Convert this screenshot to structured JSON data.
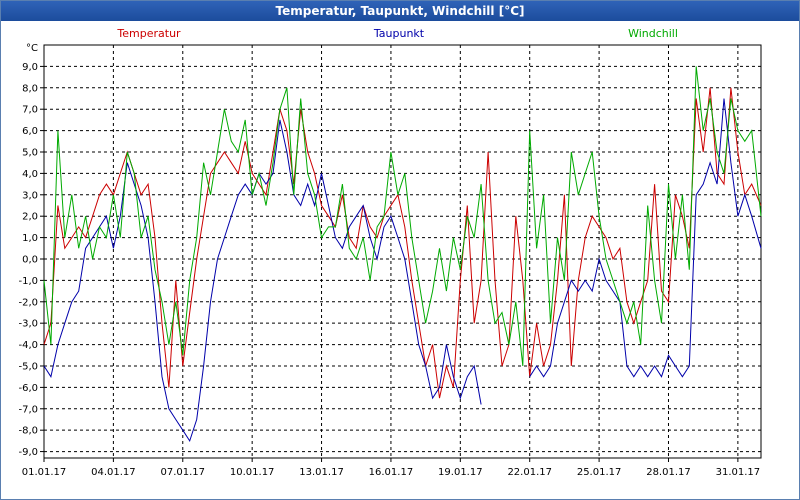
{
  "chart_data": {
    "type": "line",
    "title": "Temperatur, Taupunkt, Windchill [°C]",
    "ylabel": "°C",
    "xlabel": "",
    "ylim": [
      -9.3,
      10.0
    ],
    "xlim": [
      1,
      32
    ],
    "grid": true,
    "legend_placement": "top",
    "y_ticks": [
      "9,0",
      "8,0",
      "7,0",
      "6,0",
      "5,0",
      "4,0",
      "3,0",
      "2,0",
      "1,0",
      "0,0",
      "-1,0",
      "-2,0",
      "-3,0",
      "-4,0",
      "-5,0",
      "-6,0",
      "-7,0",
      "-8,0",
      "-9,0"
    ],
    "y_tick_values": [
      9,
      8,
      7,
      6,
      5,
      4,
      3,
      2,
      1,
      0,
      -1,
      -2,
      -3,
      -4,
      -5,
      -6,
      -7,
      -8,
      -9
    ],
    "x_ticks": [
      "01.01.17",
      "04.01.17",
      "07.01.17",
      "10.01.17",
      "13.01.17",
      "16.01.17",
      "19.01.17",
      "22.01.17",
      "25.01.17",
      "28.01.17",
      "31.01.17"
    ],
    "x_tick_values": [
      1,
      4,
      7,
      10,
      13,
      16,
      19,
      22,
      25,
      28,
      31
    ],
    "series": [
      {
        "name": "Temperatur",
        "color": "#cc0000",
        "x": [
          1,
          1.3,
          1.6,
          1.9,
          2.2,
          2.5,
          2.8,
          3.1,
          3.4,
          3.7,
          4.0,
          4.3,
          4.6,
          4.9,
          5.2,
          5.5,
          5.8,
          6.1,
          6.4,
          6.7,
          7.0,
          7.3,
          7.6,
          7.9,
          8.2,
          8.5,
          8.8,
          9.1,
          9.4,
          9.7,
          10.0,
          10.3,
          10.6,
          10.9,
          11.2,
          11.5,
          11.8,
          12.1,
          12.4,
          12.7,
          13.0,
          13.3,
          13.6,
          13.9,
          14.2,
          14.5,
          14.8,
          15.1,
          15.4,
          15.7,
          16.0,
          16.3,
          16.6,
          16.9,
          17.2,
          17.5,
          17.8,
          18.1,
          18.4,
          18.7,
          19.0,
          19.3,
          19.6,
          19.9,
          20.2,
          20.5,
          20.8,
          21.1,
          21.4,
          21.7,
          22.0,
          22.3,
          22.6,
          22.9,
          23.2,
          23.5,
          23.8,
          24.1,
          24.4,
          24.7,
          25.0,
          25.3,
          25.6,
          25.9,
          26.2,
          26.5,
          26.8,
          27.1,
          27.4,
          27.7,
          28.0,
          28.3,
          28.6,
          28.9,
          29.2,
          29.5,
          29.8,
          30.1,
          30.4,
          30.7,
          31.0,
          31.3,
          31.6,
          32.0
        ],
        "y": [
          -4.0,
          -3.0,
          2.5,
          0.5,
          1.0,
          1.5,
          1.0,
          2.0,
          3.0,
          3.5,
          3.0,
          4.0,
          5.0,
          4.0,
          3.0,
          3.5,
          1.0,
          -3.0,
          -6.0,
          -1.0,
          -5.0,
          -2.5,
          0.0,
          2.0,
          4.0,
          4.5,
          5.0,
          4.5,
          4.0,
          5.5,
          4.0,
          3.5,
          3.0,
          5.0,
          7.0,
          6.0,
          3.5,
          7.0,
          5.0,
          4.0,
          2.5,
          2.0,
          1.5,
          3.0,
          1.0,
          0.5,
          2.5,
          1.5,
          1.0,
          2.0,
          2.5,
          3.0,
          1.5,
          -1.0,
          -3.0,
          -5.0,
          -4.0,
          -6.5,
          -5.0,
          -6.0,
          -1.0,
          2.5,
          -3.0,
          -1.0,
          5.0,
          -1.0,
          -5.0,
          -4.0,
          2.0,
          -1.0,
          -5.5,
          -3.0,
          -5.0,
          -4.0,
          -1.0,
          3.0,
          -5.0,
          -1.0,
          1.0,
          2.0,
          1.5,
          1.0,
          0.0,
          0.5,
          -2.0,
          -3.0,
          -2.0,
          -1.0,
          3.5,
          -1.5,
          -2.0,
          3.0,
          2.0,
          0.5,
          7.5,
          5.0,
          8.0,
          4.0,
          3.5,
          8.0,
          5.0,
          3.0,
          3.5,
          2.5
        ]
      },
      {
        "name": "Taupunkt",
        "color": "#0000aa",
        "x": [
          1,
          1.3,
          1.6,
          1.9,
          2.2,
          2.5,
          2.8,
          3.1,
          3.4,
          3.7,
          4.0,
          4.3,
          4.6,
          4.9,
          5.2,
          5.5,
          5.8,
          6.1,
          6.4,
          6.7,
          7.0,
          7.3,
          7.6,
          7.9,
          8.2,
          8.5,
          8.8,
          9.1,
          9.4,
          9.7,
          10.0,
          10.3,
          10.6,
          10.9,
          11.2,
          11.5,
          11.8,
          12.1,
          12.4,
          12.7,
          13.0,
          13.3,
          13.6,
          13.9,
          14.2,
          14.5,
          14.8,
          15.1,
          15.4,
          15.7,
          16.0,
          16.3,
          16.6,
          16.9,
          17.2,
          17.5,
          17.8,
          18.1,
          18.4,
          18.7,
          19.0,
          19.3,
          19.6,
          19.9
        ],
        "y": [
          -5.0,
          -5.5,
          -4.0,
          -3.0,
          -2.0,
          -1.5,
          0.5,
          1.0,
          1.5,
          2.0,
          0.5,
          2.0,
          4.5,
          3.5,
          2.5,
          1.0,
          -2.0,
          -5.5,
          -7.0,
          -7.5,
          -8.0,
          -8.5,
          -7.5,
          -5.0,
          -2.0,
          0.0,
          1.0,
          2.0,
          3.0,
          3.5,
          3.0,
          4.0,
          3.5,
          4.0,
          6.5,
          5.0,
          3.0,
          2.5,
          3.5,
          2.5,
          4.0,
          2.5,
          1.0,
          0.5,
          1.5,
          2.0,
          2.5,
          1.0,
          0.0,
          1.5,
          2.0,
          1.0,
          0.0,
          -2.0,
          -4.0,
          -5.0,
          -6.5,
          -6.0,
          -4.0,
          -5.5,
          -6.5,
          -5.5,
          -5.0,
          -6.8
        ]
      },
      {
        "name": "Taupunkt",
        "color": "#0000aa",
        "x": [
          22.0,
          22.3,
          22.6,
          22.9,
          23.2,
          23.5,
          23.8,
          24.1,
          24.4,
          24.7,
          25.0,
          25.3,
          25.6,
          25.9,
          26.2,
          26.5,
          26.8,
          27.1,
          27.4,
          27.7,
          28.0,
          28.3,
          28.6,
          28.9,
          29.2,
          29.5,
          29.8,
          30.1,
          30.4,
          30.7,
          31.0,
          31.3,
          31.6,
          32.0
        ],
        "y": [
          -5.5,
          -5.0,
          -5.5,
          -5.0,
          -3.0,
          -2.0,
          -1.0,
          -1.5,
          -1.0,
          -1.5,
          0.0,
          -1.0,
          -1.5,
          -2.0,
          -5.0,
          -5.5,
          -5.0,
          -5.5,
          -5.0,
          -5.5,
          -4.5,
          -5.0,
          -5.5,
          -5.0,
          3.0,
          3.5,
          4.5,
          3.5,
          7.5,
          4.5,
          2.0,
          3.0,
          2.0,
          0.5
        ]
      },
      {
        "name": "Windchill",
        "color": "#00aa00",
        "x": [
          1,
          1.3,
          1.6,
          1.9,
          2.2,
          2.5,
          2.8,
          3.1,
          3.4,
          3.7,
          4.0,
          4.3,
          4.6,
          4.9,
          5.2,
          5.5,
          5.8,
          6.1,
          6.4,
          6.7,
          7.0,
          7.3,
          7.6,
          7.9,
          8.2,
          8.5,
          8.8,
          9.1,
          9.4,
          9.7,
          10.0,
          10.3,
          10.6,
          10.9,
          11.2,
          11.5,
          11.8,
          12.1,
          12.4,
          12.7,
          13.0,
          13.3,
          13.6,
          13.9,
          14.2,
          14.5,
          14.8,
          15.1,
          15.4,
          15.7,
          16.0,
          16.3,
          16.6,
          16.9,
          17.2,
          17.5,
          17.8,
          18.1,
          18.4,
          18.7,
          19.0,
          19.3,
          19.6,
          19.9,
          20.2,
          20.5,
          20.8,
          21.1,
          21.4,
          21.7,
          22.0,
          22.3,
          22.6,
          22.9,
          23.2,
          23.5,
          23.8,
          24.1,
          24.4,
          24.7,
          25.0,
          25.3,
          25.6,
          25.9,
          26.2,
          26.5,
          26.8,
          27.1,
          27.4,
          27.7,
          28.0,
          28.3,
          28.6,
          28.9,
          29.2,
          29.5,
          29.8,
          30.1,
          30.4,
          30.7,
          31.0,
          31.3,
          31.6,
          32.0
        ],
        "y": [
          -1.0,
          -4.0,
          6.0,
          1.0,
          3.0,
          0.5,
          2.0,
          0.0,
          1.5,
          1.0,
          3.0,
          1.0,
          5.0,
          4.0,
          1.0,
          2.0,
          -0.5,
          -2.0,
          -4.0,
          -2.0,
          -4.5,
          -1.0,
          1.0,
          4.5,
          3.0,
          5.0,
          7.0,
          5.5,
          5.0,
          6.5,
          3.0,
          4.0,
          2.5,
          4.5,
          7.0,
          8.0,
          3.0,
          7.5,
          4.0,
          3.0,
          1.0,
          1.5,
          1.5,
          3.5,
          0.5,
          0.0,
          1.0,
          -1.0,
          1.5,
          2.0,
          5.0,
          3.0,
          4.0,
          1.0,
          -1.0,
          -3.0,
          -1.5,
          0.5,
          -1.5,
          1.0,
          -0.5,
          2.0,
          1.0,
          3.5,
          -1.0,
          -3.0,
          -2.5,
          -4.0,
          -2.0,
          -5.0,
          6.0,
          0.5,
          3.0,
          -3.0,
          1.0,
          -1.0,
          5.0,
          3.0,
          4.0,
          5.0,
          2.0,
          0.0,
          -1.0,
          -2.0,
          -3.0,
          -2.0,
          -4.0,
          2.5,
          -1.0,
          -3.0,
          3.5,
          0.0,
          3.0,
          -0.5,
          9.0,
          6.0,
          7.5,
          5.0,
          4.0,
          7.5,
          6.0,
          5.5,
          6.0,
          2.0
        ]
      }
    ]
  }
}
